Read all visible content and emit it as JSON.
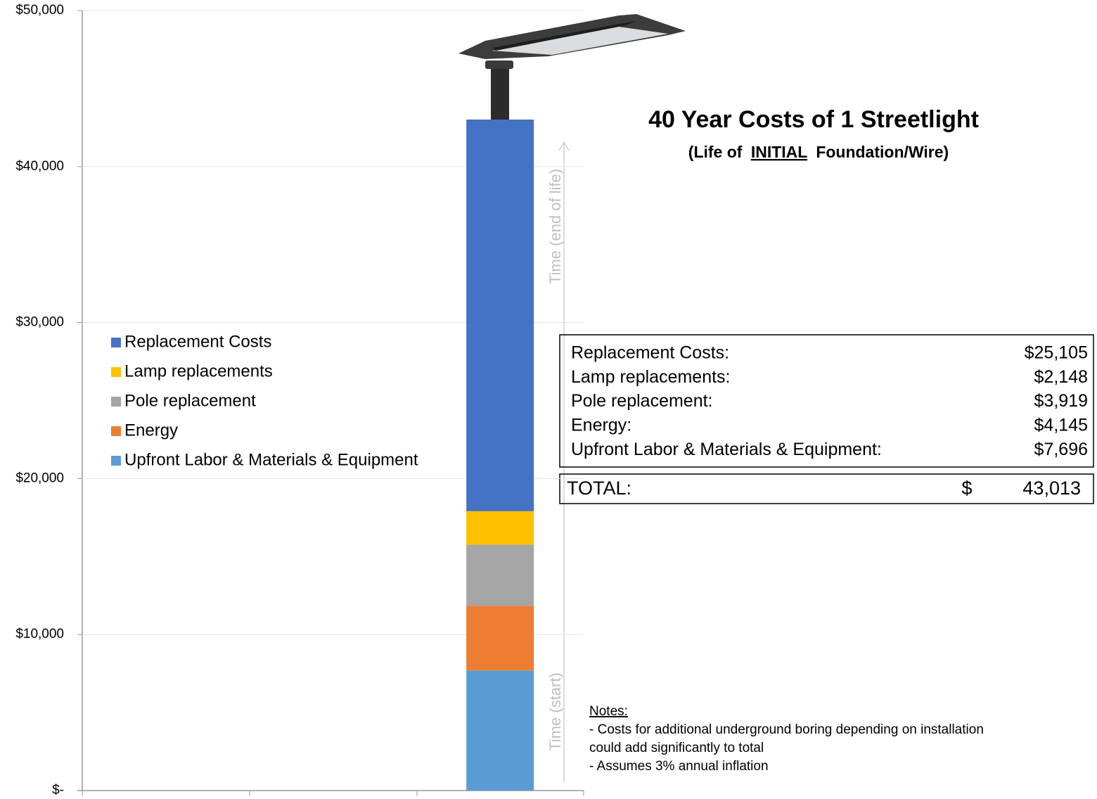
{
  "chart_data": {
    "type": "stacked-bar",
    "title": "40 Year Costs of 1 Streetlight",
    "subtitle": [
      "(Life of",
      "INITIAL",
      "Foundation/Wire)"
    ],
    "categories": [
      null,
      null,
      null
    ],
    "series": [
      {
        "name": "Upfront Labor & Materials & Equipment",
        "color": "#5b9bd5",
        "values": [
          null,
          null,
          7696
        ]
      },
      {
        "name": "Energy",
        "color": "#ed7d31",
        "values": [
          null,
          null,
          4145
        ]
      },
      {
        "name": "Pole replacement",
        "color": "#a5a5a5",
        "values": [
          null,
          null,
          3919
        ]
      },
      {
        "name": "Lamp replacements",
        "color": "#ffc000",
        "values": [
          null,
          null,
          2148
        ]
      },
      {
        "name": "Replacement Costs",
        "color": "#4472c4",
        "values": [
          null,
          null,
          25105
        ]
      }
    ],
    "ylim": [
      0,
      50000
    ],
    "yticks": [
      {
        "value": 0,
        "label": "$-"
      },
      {
        "value": 10000,
        "label": "$10,000"
      },
      {
        "value": 20000,
        "label": "$20,000"
      },
      {
        "value": 30000,
        "label": "$30,000"
      },
      {
        "value": 40000,
        "label": "$40,000"
      },
      {
        "value": 50000,
        "label": "$50,000"
      }
    ],
    "grid": true,
    "annotations": [
      "Time (end of life)",
      "Time (start)"
    ],
    "summary_table": {
      "rows": [
        {
          "label": "Replacement Costs:",
          "value": "$25,105"
        },
        {
          "label": "Lamp replacements:",
          "value": "$2,148"
        },
        {
          "label": "Pole replacement:",
          "value": "$3,919"
        },
        {
          "label": "Energy:",
          "value": "$4,145"
        },
        {
          "label": "Upfront Labor & Materials & Equipment:",
          "value": "$7,696"
        }
      ],
      "total": {
        "label": "TOTAL:",
        "currency": "$",
        "value": "43,013"
      }
    },
    "notes": {
      "heading": "Notes:",
      "lines": [
        "- Costs for additional underground boring depending on installation",
        "could add significantly to total",
        "- Assumes 3% annual inflation"
      ]
    }
  }
}
